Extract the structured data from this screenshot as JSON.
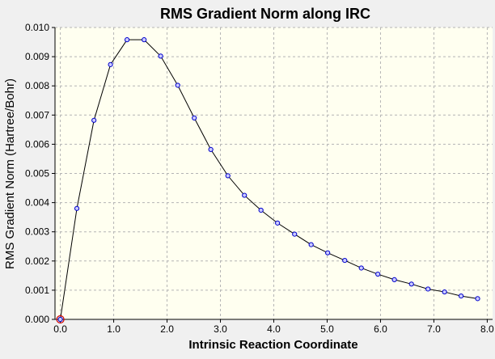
{
  "chart_data": {
    "type": "line",
    "title": "RMS Gradient Norm along IRC",
    "xlabel": "Intrinsic Reaction Coordinate",
    "ylabel": "RMS Gradient Norm (Hartree/Bohr)",
    "xlim": [
      -0.1,
      8.1
    ],
    "ylim": [
      0.0,
      0.01
    ],
    "xticks": [
      0.0,
      1.0,
      2.0,
      3.0,
      4.0,
      5.0,
      6.0,
      7.0,
      8.0
    ],
    "xtick_labels": [
      "0.0",
      "1.0",
      "2.0",
      "3.0",
      "4.0",
      "5.0",
      "6.0",
      "7.0",
      "8.0"
    ],
    "yticks": [
      0.0,
      0.001,
      0.002,
      0.003,
      0.004,
      0.005,
      0.006,
      0.007,
      0.008,
      0.009,
      0.01
    ],
    "ytick_labels": [
      "0.000",
      "0.001",
      "0.002",
      "0.003",
      "0.004",
      "0.005",
      "0.006",
      "0.007",
      "0.008",
      "0.009",
      "0.010"
    ],
    "grid": true,
    "series": [
      {
        "x": [
          0.0,
          0.31,
          0.63,
          0.94,
          1.25,
          1.57,
          1.88,
          2.2,
          2.51,
          2.82,
          3.14,
          3.45,
          3.76,
          4.07,
          4.39,
          4.7,
          5.01,
          5.33,
          5.64,
          5.95,
          6.26,
          6.58,
          6.89,
          7.2,
          7.51,
          7.82
        ],
        "y": [
          0.0,
          0.0038,
          0.00682,
          0.00873,
          0.00958,
          0.00958,
          0.00902,
          0.00802,
          0.0069,
          0.00582,
          0.00492,
          0.00425,
          0.00374,
          0.0033,
          0.00292,
          0.00256,
          0.00228,
          0.00202,
          0.00176,
          0.00155,
          0.00136,
          0.00121,
          0.00104,
          0.00094,
          0.0008,
          0.00071
        ]
      }
    ],
    "start_marker_index": 0
  },
  "colors": {
    "background": "#f0f0f0",
    "plot_background": "#fffff0",
    "grid": "#b4b4b4",
    "line": "#000000",
    "marker": "#0000cc",
    "marker_fill": "#ccccff",
    "start_marker": "#cc0000"
  }
}
